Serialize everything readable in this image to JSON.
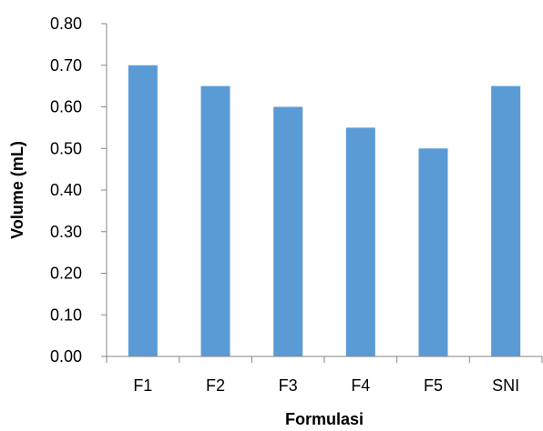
{
  "chart_data": {
    "type": "bar",
    "title": "",
    "xlabel": "Formulasi",
    "ylabel": "Volume (mL)",
    "categories": [
      "F1",
      "F2",
      "F3",
      "F4",
      "F5",
      "SNI"
    ],
    "values": [
      0.7,
      0.65,
      0.6,
      0.55,
      0.5,
      0.65
    ],
    "ylim": [
      0,
      0.8
    ],
    "yticks": [
      "0.00",
      "0.10",
      "0.20",
      "0.30",
      "0.40",
      "0.50",
      "0.60",
      "0.70",
      "0.80"
    ],
    "grid": false,
    "legend": "none",
    "bar_color": "#5B9BD5",
    "axis_color": "#868686"
  }
}
